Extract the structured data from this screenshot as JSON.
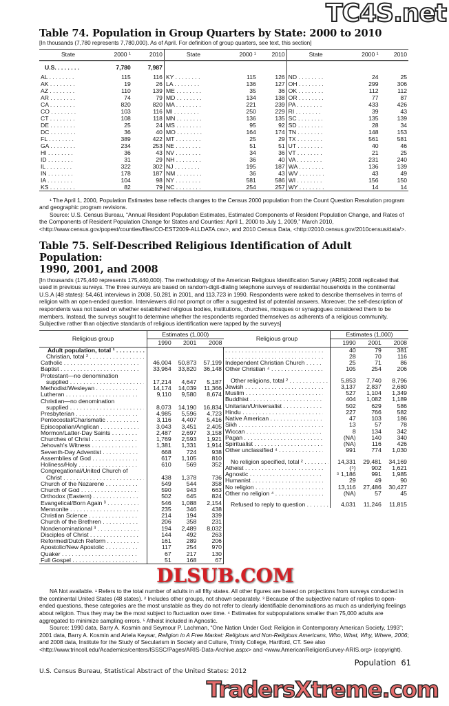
{
  "watermarks": {
    "top": "TC4S.net",
    "middle": "DLSUB.COM",
    "bottom": "TradersXtreme.com"
  },
  "table74": {
    "title": "Table 74. Population in Group Quarters by State: 2000 to 2010",
    "headnote": "[In thousands (7,780 represents 7,780,000). As of April. For definition of group quarters, see text, this section]",
    "headers": [
      "State",
      "2000 ¹",
      "2010",
      "State",
      "2000 ¹",
      "2010",
      "State",
      "2000 ¹",
      "2010"
    ],
    "us": {
      "label": "U.S. . . . . . . .",
      "v2000": "7,780",
      "v2010": "7,987"
    },
    "rows": [
      [
        "AL",
        "115",
        "116",
        "KY",
        "115",
        "126",
        "ND",
        "24",
        "25"
      ],
      [
        "AK",
        "19",
        "26",
        "LA",
        "136",
        "127",
        "OH",
        "299",
        "306"
      ],
      [
        "AZ",
        "110",
        "139",
        "ME",
        "35",
        "36",
        "OK",
        "112",
        "112"
      ],
      [
        "AR",
        "74",
        "79",
        "MD",
        "134",
        "138",
        "OR",
        "77",
        "87"
      ],
      [
        "CA",
        "820",
        "820",
        "MA",
        "221",
        "239",
        "PA",
        "433",
        "426"
      ],
      [
        "CO",
        "103",
        "116",
        "MI",
        "250",
        "229",
        "RI",
        "39",
        "43"
      ],
      [
        "CT",
        "108",
        "118",
        "MN",
        "136",
        "135",
        "SC",
        "135",
        "139"
      ],
      [
        "DE",
        "25",
        "24",
        "MS",
        "95",
        "92",
        "SD",
        "28",
        "34"
      ],
      [
        "DC",
        "36",
        "40",
        "MO",
        "164",
        "174",
        "TN",
        "148",
        "153"
      ],
      [
        "FL",
        "389",
        "422",
        "MT",
        "25",
        "29",
        "TX",
        "561",
        "581"
      ],
      [
        "GA",
        "234",
        "253",
        "NE",
        "51",
        "51",
        "UT",
        "40",
        "46"
      ],
      [
        "HI",
        "36",
        "43",
        "NV",
        "34",
        "36",
        "VT",
        "21",
        "25"
      ],
      [
        "ID",
        "31",
        "29",
        "NH",
        "36",
        "40",
        "VA",
        "231",
        "240"
      ],
      [
        "IL",
        "322",
        "302",
        "NJ",
        "195",
        "187",
        "WA",
        "136",
        "139"
      ],
      [
        "IN",
        "178",
        "187",
        "NM",
        "36",
        "43",
        "WV",
        "43",
        "49"
      ],
      [
        "IA",
        "104",
        "98",
        "NY",
        "581",
        "586",
        "WI",
        "156",
        "150"
      ],
      [
        "KS",
        "82",
        "79",
        "NC",
        "254",
        "257",
        "WY",
        "14",
        "14"
      ]
    ],
    "footnote": "¹ The April 1, 2000, Population Estimates base reflects changes to the Census 2000 population from the Count Question Resolution program and geographic program revisions.",
    "source": "Source: U.S. Census Bureau, “Annual Resident Population Estimates, Estimated Components of Resident Population Change, and Rates of the Components of Resident Population Change for States and Counties: April 1, 2000 to July 1, 2009,” March 2010, <http://www.census.gov/popest/counties/files/CO-EST2009-ALLDATA.csv>, and 2010 Census Data, <http://2010.census.gov/2010census/data/>."
  },
  "table75": {
    "title_line1": "Table 75. Self-Described Religious Identification of Adult Population:",
    "title_line2": "1990, 2001, and 2008",
    "headnote": "[In thousands (175,440 represents 175,440,000). The methodology of the American Religious Identification Survey (ARIS) 2008 replicated that used in previous surveys. The three surveys are based on random-digit-dialing telephone surveys of residential households in the continental U.S.A (48 states): 54,461 interviews in 2008, 50,281 in 2001, and 113,723 in 1990. Respondents were asked to describe themselves in terms of religion with an open-ended question. Interviewers did not prompt or offer a suggested list of potential answers. Moreover, the self-description of respondents was not based on whether established religious bodies, institutions, churches, mosques or synagogues considered them to be members. Instead, the surveys sought to determine whether the respondents regarded themselves as adherents of a religious community. Subjective rather than objective standards of religious identification were tapped by the surveys]",
    "group_header": "Religious group",
    "estimates_header": "Estimates (1,000)",
    "years": [
      "1990",
      "2001",
      "2008"
    ],
    "left_rows": [
      {
        "label": "Adult population, total ¹",
        "v": [
          "",
          "",
          ""
        ],
        "style": "bold"
      },
      {
        "label": "Christian, total ²",
        "v": [
          "",
          "",
          ""
        ],
        "style": "indent"
      },
      {
        "label": "Catholic",
        "v": [
          "46,004",
          "50,873",
          "57,199"
        ]
      },
      {
        "label": "Baptist",
        "v": [
          "33,964",
          "33,820",
          "36,148"
        ]
      },
      {
        "label": "Protestant—no denomination",
        "v": [
          "",
          "",
          ""
        ],
        "nodots": true
      },
      {
        "label": "supplied",
        "v": [
          "17,214",
          "4,647",
          "5,187"
        ],
        "style": "indent"
      },
      {
        "label": "Methodist/Wesleyan",
        "v": [
          "14,174",
          "14,039",
          "11,366"
        ]
      },
      {
        "label": "Lutheran",
        "v": [
          "9,110",
          "9,580",
          "8,674"
        ]
      },
      {
        "label": "Christian—no denomination",
        "v": [
          "",
          "",
          ""
        ],
        "nodots": true
      },
      {
        "label": "supplied",
        "v": [
          "8,073",
          "14,190",
          "16,834"
        ],
        "style": "indent"
      },
      {
        "label": "Presbyterian",
        "v": [
          "4,985",
          "5,596",
          "4,723"
        ]
      },
      {
        "label": "Pentecostal/Charismatic",
        "v": [
          "3,116",
          "4,407",
          "5,416"
        ]
      },
      {
        "label": "Episcopalian/Anglican",
        "v": [
          "3,043",
          "3,451",
          "2,405"
        ]
      },
      {
        "label": "Mormon/Latter-Day Saints",
        "v": [
          "2,487",
          "2,697",
          "3,158"
        ]
      },
      {
        "label": "Churches of Christ",
        "v": [
          "1,769",
          "2,593",
          "1,921"
        ]
      },
      {
        "label": "Jehovah's Witness",
        "v": [
          "1,381",
          "1,331",
          "1,914"
        ]
      },
      {
        "label": "Seventh-Day Adventist",
        "v": [
          "668",
          "724",
          "938"
        ]
      },
      {
        "label": "Assemblies of God",
        "v": [
          "617",
          "1,105",
          "810"
        ]
      },
      {
        "label": "Holiness/Holy",
        "v": [
          "610",
          "569",
          "352"
        ]
      },
      {
        "label": "Congregational/United Church of",
        "v": [
          "",
          "",
          ""
        ],
        "nodots": true
      },
      {
        "label": "Christ",
        "v": [
          "438",
          "1,378",
          "736"
        ],
        "style": "indent"
      },
      {
        "label": "Church of the Nazarene",
        "v": [
          "549",
          "544",
          "358"
        ]
      },
      {
        "label": "Church of God",
        "v": [
          "590",
          "943",
          "663"
        ]
      },
      {
        "label": "Orthodox (Eastern)",
        "v": [
          "502",
          "645",
          "824"
        ]
      },
      {
        "label": "Evangelical/Born Again ³",
        "v": [
          "546",
          "1,088",
          "2,154"
        ]
      },
      {
        "label": "Mennonite",
        "v": [
          "235",
          "346",
          "438"
        ]
      },
      {
        "label": "Christian Science",
        "v": [
          "214",
          "194",
          "339"
        ]
      },
      {
        "label": "Church of the Brethren",
        "v": [
          "206",
          "358",
          "231"
        ]
      },
      {
        "label": "Nondenominational ³",
        "v": [
          "194",
          "2,489",
          "8,032"
        ]
      },
      {
        "label": "Disciples of Christ",
        "v": [
          "144",
          "492",
          "263"
        ]
      },
      {
        "label": "Reformed/Dutch Reform",
        "v": [
          "161",
          "289",
          "206"
        ]
      },
      {
        "label": "Apostolic/New Apostolic",
        "v": [
          "117",
          "254",
          "970"
        ]
      },
      {
        "label": "Quaker",
        "v": [
          "67",
          "217",
          "130"
        ]
      },
      {
        "label": "Full Gospel",
        "v": [
          "51",
          "168",
          "67"
        ]
      }
    ],
    "right_rows": [
      {
        "label": "",
        "v": [
          "40",
          "79",
          "381"
        ]
      },
      {
        "label": "",
        "v": [
          "28",
          "70",
          "116"
        ]
      },
      {
        "label": "Independent Christian Church",
        "v": [
          "25",
          "71",
          "86"
        ]
      },
      {
        "label": "Other Christian ⁴",
        "v": [
          "105",
          "254",
          "206"
        ]
      },
      {
        "spacer": true
      },
      {
        "label": "Other religions, total ²",
        "v": [
          "5,853",
          "7,740",
          "8,796"
        ],
        "style": "indent"
      },
      {
        "label": "Jewish",
        "v": [
          "3,137",
          "2,837",
          "2,680"
        ]
      },
      {
        "label": "Muslim",
        "v": [
          "527",
          "1,104",
          "1,349"
        ]
      },
      {
        "label": "Buddhist",
        "v": [
          "404",
          "1,082",
          "1,189"
        ]
      },
      {
        "label": "Unitarian/Universalist",
        "v": [
          "502",
          "629",
          "586"
        ]
      },
      {
        "label": "Hindu",
        "v": [
          "227",
          "766",
          "582"
        ]
      },
      {
        "label": "Native American",
        "v": [
          "47",
          "103",
          "186"
        ]
      },
      {
        "label": "Sikh",
        "v": [
          "13",
          "57",
          "78"
        ]
      },
      {
        "label": "Wiccan",
        "v": [
          "8",
          "134",
          "342"
        ]
      },
      {
        "label": "Pagan",
        "v": [
          "(NA)",
          "140",
          "340"
        ]
      },
      {
        "label": "Spiritualist",
        "v": [
          "(NA)",
          "116",
          "426"
        ]
      },
      {
        "label": "Other unclassified ⁴",
        "v": [
          "991",
          "774",
          "1,030"
        ]
      },
      {
        "spacer": true
      },
      {
        "label": "No religion specified, total ²",
        "v": [
          "14,331",
          "29,481",
          "34,169"
        ],
        "style": "indent"
      },
      {
        "label": "Atheist",
        "v": [
          "(⁵)",
          "902",
          "1,621"
        ]
      },
      {
        "label": "Agnostic",
        "v": [
          "⁵ 1,186",
          "991",
          "1,985"
        ]
      },
      {
        "label": "Humanist",
        "v": [
          "29",
          "49",
          "90"
        ]
      },
      {
        "label": "No religion",
        "v": [
          "13,116",
          "27,486",
          "30,427"
        ]
      },
      {
        "label": "Other no religion ⁴",
        "v": [
          "(NA)",
          "57",
          "45"
        ]
      },
      {
        "spacer": true
      },
      {
        "label": "Refused to reply to question",
        "v": [
          "4,031",
          "11,246",
          "11,815"
        ],
        "style": "indent"
      }
    ],
    "footnote": "NA Not available. ¹ Refers to the total number of adults in all fifty states. All other figures are based on projections from surveys conducted in the continental United States (48 states). ² Includes other groups, not shown separately. ³ Because of the subjective nature of replies to open-ended questions, these categories are the most unstable as they do not refer to clearly identifiable denominations as much as underlying feelings about religion. Thus they may be the most subject to fluctuation over time. ⁴ Estimates for subpopulations smaller than 75,000 adults are aggregated to minimize sampling errors. ⁵ Atheist included in Agnostic.",
    "source_plain1": "Source: 1990 data, Barry A. Kosmin and Seymour P. Lachman, “One Nation Under God: Religion in Contemporary American Society, 1993”; 2001 data, Barry A. Kosmin and Ariela Keysar, ",
    "source_italic": "Religion in A Free Market: Religious and Non-Religious Americans, Who, What, Why, Where, 2006",
    "source_plain2": "; and 2008 data, Institute for the Study of Secularism in Society and Culture, Trinity College, Hartford, CT. See also <http://www.trincoll.edu/Academics/centers/ISSSC/Pages/ARIS-Data-Archive.aspx> and <www.AmericanReligionSurvey-ARIS.org> (copyright)."
  },
  "footer": {
    "section": "Population",
    "page": "61",
    "publication": "U.S. Census Bureau, Statistical Abstract of the United States: 2012"
  }
}
